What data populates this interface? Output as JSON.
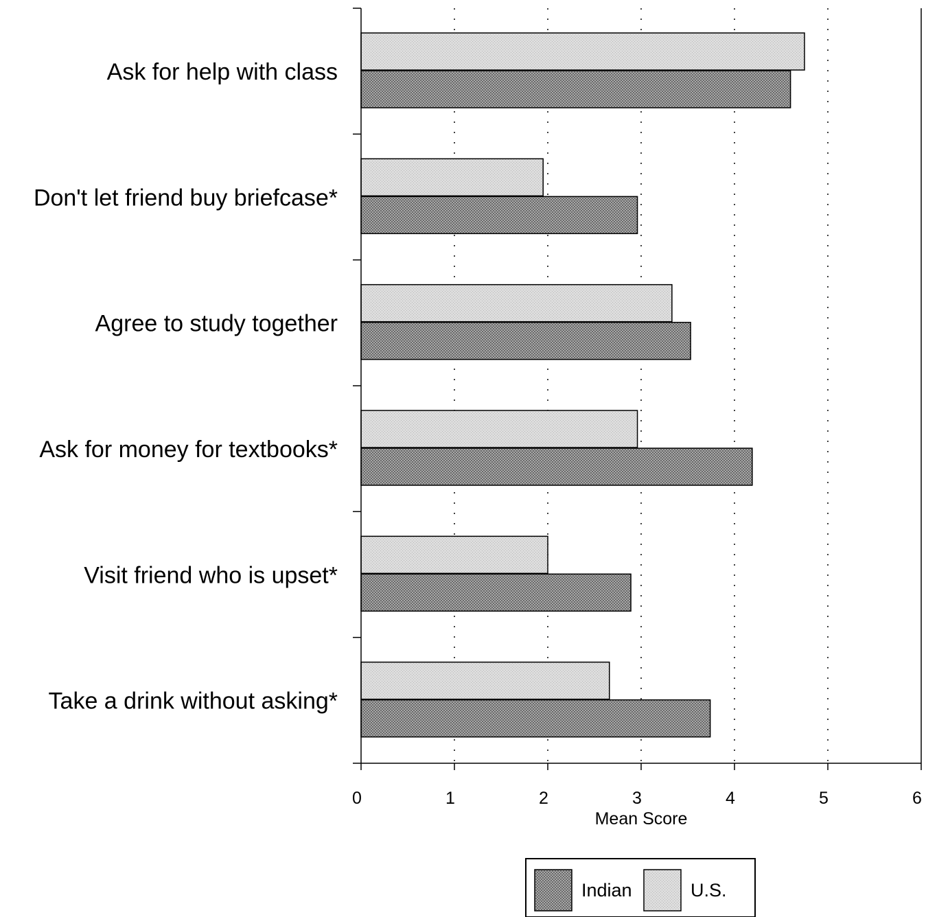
{
  "chart_data": {
    "type": "bar",
    "orientation": "horizontal",
    "categories": [
      "Ask for help with class",
      "Don't let friend buy briefcase*",
      "Agree to study together",
      "Ask for money for textbooks*",
      "Visit friend who is upset*",
      "Take a drink without asking*"
    ],
    "series": [
      {
        "name": "U.S.",
        "values": [
          4.75,
          1.95,
          3.33,
          2.96,
          2.0,
          2.66
        ]
      },
      {
        "name": "Indian",
        "values": [
          4.6,
          2.96,
          3.53,
          4.19,
          2.89,
          3.74
        ]
      }
    ],
    "xlabel": "Mean Score",
    "xlim": [
      0,
      6
    ],
    "xticks": [
      "0",
      "1",
      "2",
      "3",
      "4",
      "5",
      "6"
    ],
    "grid": "vertical dotted",
    "legend": {
      "placement": "bottom-center",
      "entries": [
        "Indian",
        "U.S."
      ]
    },
    "colors": {
      "indian": "#8c8c8c",
      "us": "#d4d4d4",
      "outline": "#000000"
    }
  }
}
